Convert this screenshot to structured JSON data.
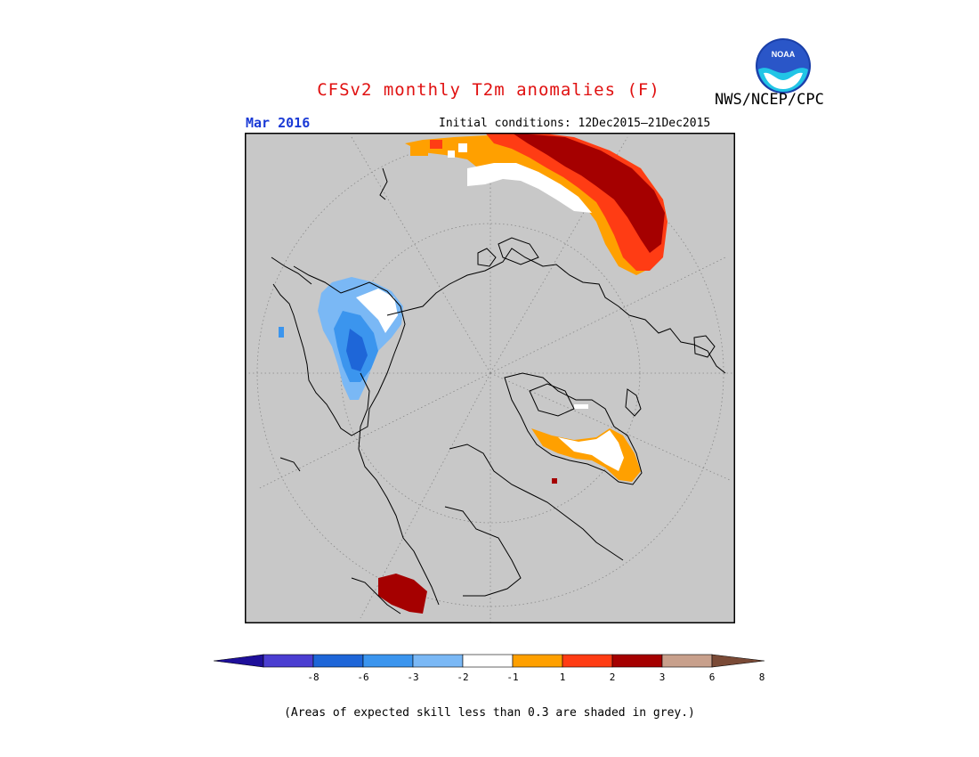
{
  "title": "CFSv2 monthly T2m anomalies (F)",
  "agency": "NWS/NCEP/CPC",
  "logo_text": "NOAA",
  "period": "Mar 2016",
  "initial_conditions": "Initial conditions: 12Dec2015–21Dec2015",
  "note": "(Areas of expected skill less than 0.3 are shaded in grey.)",
  "colors": {
    "title": "#e01010",
    "period": "#1a3ad6",
    "map_background": "#c8c8c8",
    "coastline": "#000000"
  },
  "legend": {
    "tick_labels": [
      "-8",
      "-6",
      "-3",
      "-2",
      "-1",
      "1",
      "2",
      "3",
      "6",
      "8"
    ],
    "colors": [
      "#1e0f9a",
      "#4b3ed1",
      "#1e66d8",
      "#3b95ee",
      "#7ab8f5",
      "#ffffff",
      "#ffa000",
      "#ff3c14",
      "#a50000",
      "#c8a08c",
      "#7a4a36"
    ]
  }
}
